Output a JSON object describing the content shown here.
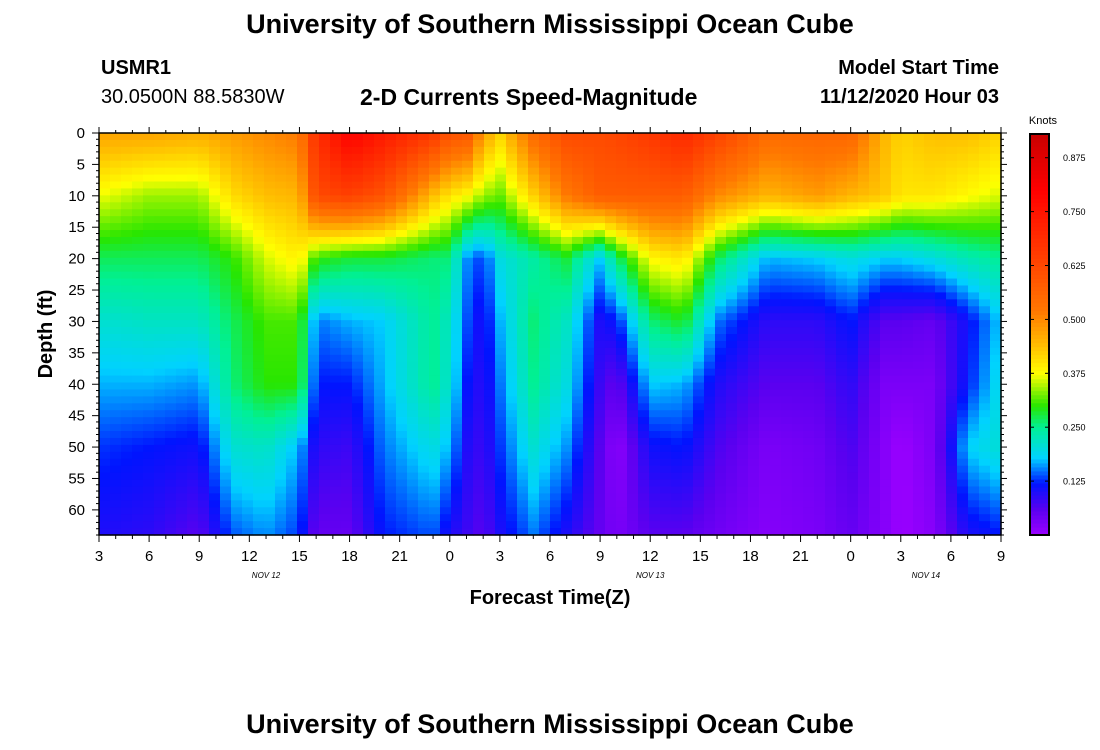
{
  "header": {
    "title_top": "University of Southern Mississippi Ocean Cube",
    "title_bottom": "University of Southern Mississippi Ocean Cube",
    "station_id": "USMR1",
    "coordinates": "30.0500N 88.5830W",
    "product": "2-D Currents Speed-Magnitude",
    "model_start_label": "Model Start Time",
    "model_start_value": "11/12/2020 Hour 03"
  },
  "chart_data": {
    "type": "heatmap",
    "title": "2-D Currents Speed-Magnitude",
    "xlabel": "Forecast Time(Z)",
    "ylabel": "Depth (ft)",
    "x_unit": "hours since 11/12/2020 03Z",
    "xlim": [
      0,
      54
    ],
    "ylim": [
      0,
      64
    ],
    "x_ticks": [
      {
        "h": 0,
        "label": "3"
      },
      {
        "h": 3,
        "label": "6"
      },
      {
        "h": 6,
        "label": "9"
      },
      {
        "h": 9,
        "label": "12"
      },
      {
        "h": 12,
        "label": "15"
      },
      {
        "h": 15,
        "label": "18"
      },
      {
        "h": 18,
        "label": "21"
      },
      {
        "h": 21,
        "label": "0"
      },
      {
        "h": 24,
        "label": "3"
      },
      {
        "h": 27,
        "label": "6"
      },
      {
        "h": 30,
        "label": "9"
      },
      {
        "h": 33,
        "label": "12"
      },
      {
        "h": 36,
        "label": "15"
      },
      {
        "h": 39,
        "label": "18"
      },
      {
        "h": 42,
        "label": "21"
      },
      {
        "h": 45,
        "label": "0"
      },
      {
        "h": 48,
        "label": "3"
      },
      {
        "h": 51,
        "label": "6"
      },
      {
        "h": 54,
        "label": "9"
      }
    ],
    "date_labels": [
      {
        "h": 10,
        "label": "NOV 12"
      },
      {
        "h": 33,
        "label": "NOV 13"
      },
      {
        "h": 49.5,
        "label": "NOV 14"
      }
    ],
    "y_ticks": [
      0,
      5,
      10,
      15,
      20,
      25,
      30,
      35,
      40,
      45,
      50,
      55,
      60
    ],
    "colorbar": {
      "unit": "Knots",
      "min": 0,
      "max": 0.93,
      "ticks": [
        "0.875",
        "0.750",
        "0.625",
        "0.500",
        "0.375",
        "0.250",
        "0.125"
      ],
      "tick_values": [
        0.875,
        0.75,
        0.625,
        0.5,
        0.375,
        0.25,
        0.125
      ]
    },
    "depths_ft": [
      0,
      10,
      20,
      30,
      40,
      50,
      64
    ],
    "profiles": [
      {
        "h": 0,
        "speeds": [
          0.47,
          0.37,
          0.27,
          0.21,
          0.17,
          0.13,
          0.1
        ]
      },
      {
        "h": 3,
        "speeds": [
          0.47,
          0.34,
          0.27,
          0.22,
          0.17,
          0.12,
          0.09
        ]
      },
      {
        "h": 6,
        "speeds": [
          0.46,
          0.34,
          0.27,
          0.22,
          0.16,
          0.11,
          0.06
        ]
      },
      {
        "h": 8,
        "speeds": [
          0.48,
          0.41,
          0.3,
          0.27,
          0.26,
          0.21,
          0.14
        ]
      },
      {
        "h": 10,
        "speeds": [
          0.5,
          0.44,
          0.36,
          0.31,
          0.3,
          0.22,
          0.16
        ]
      },
      {
        "h": 12,
        "speeds": [
          0.52,
          0.45,
          0.39,
          0.31,
          0.3,
          0.17,
          0.13
        ]
      },
      {
        "h": 13,
        "speeds": [
          0.68,
          0.62,
          0.3,
          0.15,
          0.12,
          0.09,
          0.05
        ]
      },
      {
        "h": 15,
        "speeds": [
          0.8,
          0.64,
          0.28,
          0.17,
          0.12,
          0.08,
          0.05
        ]
      },
      {
        "h": 17,
        "speeds": [
          0.74,
          0.6,
          0.28,
          0.18,
          0.17,
          0.15,
          0.12
        ]
      },
      {
        "h": 20,
        "speeds": [
          0.66,
          0.44,
          0.26,
          0.25,
          0.25,
          0.2,
          0.14
        ]
      },
      {
        "h": 21,
        "speeds": [
          0.6,
          0.4,
          0.26,
          0.22,
          0.21,
          0.17,
          0.1
        ]
      },
      {
        "h": 22,
        "speeds": [
          0.6,
          0.38,
          0.16,
          0.14,
          0.12,
          0.1,
          0.08
        ]
      },
      {
        "h": 23,
        "speeds": [
          0.48,
          0.34,
          0.13,
          0.1,
          0.09,
          0.08,
          0.06
        ]
      },
      {
        "h": 24,
        "speeds": [
          0.42,
          0.32,
          0.2,
          0.17,
          0.15,
          0.13,
          0.1
        ]
      },
      {
        "h": 26,
        "speeds": [
          0.55,
          0.42,
          0.24,
          0.26,
          0.25,
          0.21,
          0.15
        ]
      },
      {
        "h": 28,
        "speeds": [
          0.62,
          0.52,
          0.28,
          0.22,
          0.2,
          0.16,
          0.1
        ]
      },
      {
        "h": 30,
        "speeds": [
          0.62,
          0.58,
          0.18,
          0.1,
          0.08,
          0.06,
          0.05
        ]
      },
      {
        "h": 31,
        "speeds": [
          0.63,
          0.58,
          0.26,
          0.12,
          0.05,
          0.01,
          0.03
        ]
      },
      {
        "h": 33,
        "speeds": [
          0.66,
          0.58,
          0.38,
          0.26,
          0.18,
          0.11,
          0.06
        ]
      },
      {
        "h": 35,
        "speeds": [
          0.7,
          0.58,
          0.4,
          0.29,
          0.17,
          0.12,
          0.06
        ]
      },
      {
        "h": 37,
        "speeds": [
          0.64,
          0.5,
          0.27,
          0.15,
          0.1,
          0.07,
          0.04
        ]
      },
      {
        "h": 40,
        "speeds": [
          0.55,
          0.45,
          0.17,
          0.09,
          0.06,
          0.03,
          0.02
        ]
      },
      {
        "h": 43,
        "speeds": [
          0.56,
          0.48,
          0.18,
          0.09,
          0.06,
          0.04,
          0.03
        ]
      },
      {
        "h": 45,
        "speeds": [
          0.56,
          0.45,
          0.2,
          0.12,
          0.09,
          0.07,
          0.05
        ]
      },
      {
        "h": 47,
        "speeds": [
          0.45,
          0.43,
          0.18,
          0.06,
          0.03,
          0.02,
          0.02
        ]
      },
      {
        "h": 48,
        "speeds": [
          0.42,
          0.4,
          0.18,
          0.06,
          0.03,
          0.0,
          0.0
        ]
      },
      {
        "h": 50,
        "speeds": [
          0.44,
          0.4,
          0.2,
          0.05,
          0.03,
          0.03,
          0.02
        ]
      },
      {
        "h": 52,
        "speeds": [
          0.44,
          0.38,
          0.23,
          0.11,
          0.12,
          0.18,
          0.1
        ]
      },
      {
        "h": 54,
        "speeds": [
          0.42,
          0.36,
          0.25,
          0.18,
          0.2,
          0.21,
          0.12
        ]
      }
    ]
  }
}
